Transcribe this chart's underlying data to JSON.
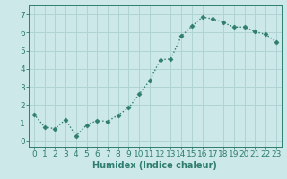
{
  "x": [
    0,
    1,
    2,
    3,
    4,
    5,
    6,
    7,
    8,
    9,
    10,
    11,
    12,
    13,
    14,
    15,
    16,
    17,
    18,
    19,
    20,
    21,
    22,
    23
  ],
  "y": [
    1.5,
    0.8,
    0.7,
    1.2,
    0.3,
    0.9,
    1.15,
    1.1,
    1.45,
    1.85,
    2.6,
    3.35,
    4.5,
    4.55,
    5.8,
    6.35,
    6.85,
    6.75,
    6.55,
    6.3,
    6.3,
    6.05,
    5.9,
    5.5
  ],
  "line_color": "#2e7d6e",
  "marker": "D",
  "marker_size": 2.5,
  "line_width": 1.0,
  "bg_color": "#cce8e8",
  "grid_color": "#b0d4d4",
  "xlabel": "Humidex (Indice chaleur)",
  "xlim": [
    -0.5,
    23.5
  ],
  "ylim": [
    -0.3,
    7.5
  ],
  "yticks": [
    0,
    1,
    2,
    3,
    4,
    5,
    6,
    7
  ],
  "xticks": [
    0,
    1,
    2,
    3,
    4,
    5,
    6,
    7,
    8,
    9,
    10,
    11,
    12,
    13,
    14,
    15,
    16,
    17,
    18,
    19,
    20,
    21,
    22,
    23
  ],
  "tick_color": "#2e7d6e",
  "label_color": "#2e7d6e",
  "xlabel_fontsize": 7,
  "tick_fontsize": 6.5
}
